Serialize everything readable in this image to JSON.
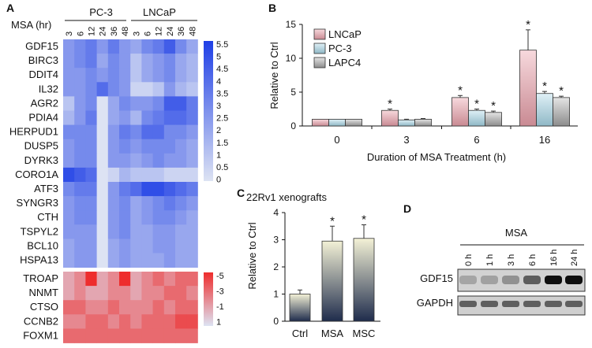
{
  "panels": {
    "A": {
      "label": "A",
      "header": "MSA (hr)",
      "cell_lines": [
        "PC-3",
        "LNCaP"
      ],
      "timepoints": [
        "3",
        "6",
        "12",
        "24",
        "36",
        "48",
        "3",
        "6",
        "12",
        "24",
        "36",
        "48"
      ],
      "genes_up": [
        "GDF15",
        "BIRC3",
        "DDIT4",
        "IL32",
        "AGR2",
        "PDIA4",
        "HERPUD1",
        "DUSP5",
        "DYRK3",
        "CORO1A",
        "ATF3",
        "SYNGR3",
        "CTH",
        "TSPYL2",
        "BCL10",
        "HSPA13"
      ],
      "genes_down": [
        "TROAP",
        "NNMT",
        "CTSO",
        "CCNB2",
        "FOXM1"
      ],
      "legend_up_ticks": [
        "5.5",
        "5",
        "4.5",
        "4",
        "3.5",
        "3",
        "2.5",
        "2",
        "1.5",
        "1",
        "0.5",
        "0"
      ],
      "legend_down_ticks": [
        "-5",
        "-3",
        "-1",
        "1"
      ],
      "colors": {
        "up_max": "#1f3fe6",
        "up_min": "#dde3f3",
        "down_max": "#ee2d2d",
        "down_min": "#dde3f3"
      }
    },
    "B": {
      "label": "B",
      "ylabel": "Relative to Ctrl",
      "xlabel": "Duration of MSA Treatment (h)",
      "significance_mark": "*"
    },
    "C": {
      "label": "C",
      "title": "22Rv1 xenografts",
      "ylabel": "Relative to Ctrl",
      "significance_mark": "*"
    },
    "D": {
      "label": "D",
      "treatment_label": "MSA",
      "lanes": [
        "0 h",
        "1 h",
        "3 h",
        "6 h",
        "16 h",
        "24 h"
      ],
      "rows": [
        "GDF15",
        "GAPDH"
      ],
      "gdf15_intensity": [
        0.18,
        0.2,
        0.28,
        0.55,
        0.95,
        0.95
      ]
    }
  },
  "chart_data": [
    {
      "type": "heatmap",
      "title": "",
      "columns": [
        "PC-3 3",
        "PC-3 6",
        "PC-3 12",
        "PC-3 24",
        "PC-3 36",
        "PC-3 48",
        "LNCaP 3",
        "LNCaP 6",
        "LNCaP 12",
        "LNCaP 24",
        "LNCaP 36",
        "LNCaP 48"
      ],
      "rows_up": [
        "GDF15",
        "BIRC3",
        "DDIT4",
        "IL32",
        "AGR2",
        "PDIA4",
        "HERPUD1",
        "DUSP5",
        "DYRK3",
        "CORO1A",
        "ATF3",
        "SYNGR3",
        "CTH",
        "TSPYL2",
        "BCL10",
        "HSPA13"
      ],
      "values_up": [
        [
          2.5,
          3,
          3.5,
          2.5,
          3.5,
          2.5,
          2,
          3,
          3.5,
          4.5,
          3,
          2
        ],
        [
          2.5,
          3,
          3.5,
          2,
          3,
          2.5,
          1,
          2,
          2.5,
          3,
          2,
          1.5
        ],
        [
          2.5,
          2.5,
          3,
          2.5,
          3,
          2.5,
          1,
          2,
          2.5,
          3,
          2,
          1.5
        ],
        [
          2.5,
          2.5,
          3,
          4,
          3,
          2.5,
          0.5,
          0.5,
          1,
          2.5,
          1.5,
          1
        ],
        [
          1,
          2.5,
          3,
          0,
          2,
          3,
          2.5,
          2.5,
          3,
          4.5,
          4.5,
          3.5
        ],
        [
          1.5,
          2.5,
          3.5,
          0,
          2,
          2.5,
          1.5,
          3,
          3.5,
          4,
          4,
          3.5
        ],
        [
          3,
          3,
          3,
          0,
          2.5,
          3.5,
          3,
          4,
          4,
          3,
          3,
          2.5
        ],
        [
          2.5,
          3,
          3,
          0,
          2.5,
          3,
          2.5,
          3,
          3,
          3,
          2.5,
          2
        ],
        [
          2.5,
          3,
          3,
          0,
          2.5,
          2.5,
          2,
          2.5,
          3,
          2.5,
          2.5,
          2
        ],
        [
          5,
          4.5,
          4,
          0,
          0.5,
          1.5,
          1,
          1,
          1,
          0.5,
          0.5,
          0.5
        ],
        [
          3,
          3.5,
          3.5,
          0,
          2.5,
          3.5,
          4,
          5,
          5,
          4.5,
          4,
          3.5
        ],
        [
          2.5,
          3,
          3,
          0,
          2.5,
          3,
          2,
          2.5,
          3,
          3.5,
          3,
          2.5
        ],
        [
          2.5,
          3,
          3,
          0,
          2.5,
          3,
          2,
          2.5,
          3,
          3,
          2.5,
          2
        ],
        [
          2.5,
          2.5,
          2.5,
          0,
          2.5,
          3,
          2,
          2,
          2.5,
          2.5,
          2,
          2
        ],
        [
          2,
          2.5,
          2.5,
          0,
          2,
          2.5,
          2,
          2,
          2.5,
          2.5,
          2,
          2
        ],
        [
          2,
          2.5,
          2.5,
          0,
          2,
          2.5,
          2,
          2,
          2,
          2.5,
          2,
          2
        ]
      ],
      "rows_down": [
        "TROAP",
        "NNMT",
        "CTSO",
        "CCNB2",
        "FOXM1"
      ],
      "values_down": [
        [
          -1,
          -2,
          -5,
          -1,
          -2,
          -5,
          -1,
          -2,
          -3,
          -2,
          -3,
          -3
        ],
        [
          -1,
          -2,
          -1,
          -1,
          -2,
          -2,
          -1,
          -2,
          -2,
          -3,
          -3,
          -2
        ],
        [
          -3,
          -3,
          -2,
          -2,
          -3,
          -2,
          -2,
          -2,
          -3,
          -2,
          -3,
          -3
        ],
        [
          -2,
          -2,
          -3,
          -3,
          -2,
          -3,
          -2,
          -3,
          -3,
          -3,
          -4,
          -4
        ],
        [
          -3,
          -3,
          -3,
          -3,
          -3,
          -3,
          -3,
          -3,
          -3,
          -3,
          -3,
          -3
        ]
      ],
      "legend_up_range": [
        0,
        5.5
      ],
      "legend_down_range": [
        -5,
        1
      ]
    },
    {
      "type": "bar",
      "title": "",
      "categories": [
        "0",
        "3",
        "6",
        "16"
      ],
      "series": [
        {
          "name": "LNCaP",
          "values": [
            1,
            2.3,
            4.2,
            11.2
          ],
          "errors": [
            0,
            0.2,
            0.3,
            3
          ],
          "significant": [
            false,
            true,
            true,
            true
          ]
        },
        {
          "name": "PC-3",
          "values": [
            1,
            0.9,
            2.3,
            4.8
          ],
          "errors": [
            0,
            0.1,
            0.2,
            0.3
          ],
          "significant": [
            false,
            false,
            true,
            true
          ]
        },
        {
          "name": "LAPC4",
          "values": [
            1,
            1,
            2,
            4.2
          ],
          "errors": [
            0,
            0.1,
            0.2,
            0.2
          ],
          "significant": [
            false,
            false,
            true,
            true
          ]
        }
      ],
      "xlabel": "Duration of MSA Treatment (h)",
      "ylabel": "Relative to Ctrl",
      "ylim": [
        0,
        15
      ],
      "yticks": [
        0,
        5,
        10,
        15
      ]
    },
    {
      "type": "bar",
      "title": "22Rv1 xenografts",
      "categories": [
        "Ctrl",
        "MSA",
        "MSC"
      ],
      "values": [
        1,
        2.95,
        3.05
      ],
      "errors": [
        0.15,
        0.55,
        0.5
      ],
      "significant": [
        false,
        true,
        true
      ],
      "xlabel": "",
      "ylabel": "Relative to Ctrl",
      "ylim": [
        0,
        4
      ],
      "yticks": [
        0,
        1,
        2,
        3,
        4
      ]
    }
  ]
}
